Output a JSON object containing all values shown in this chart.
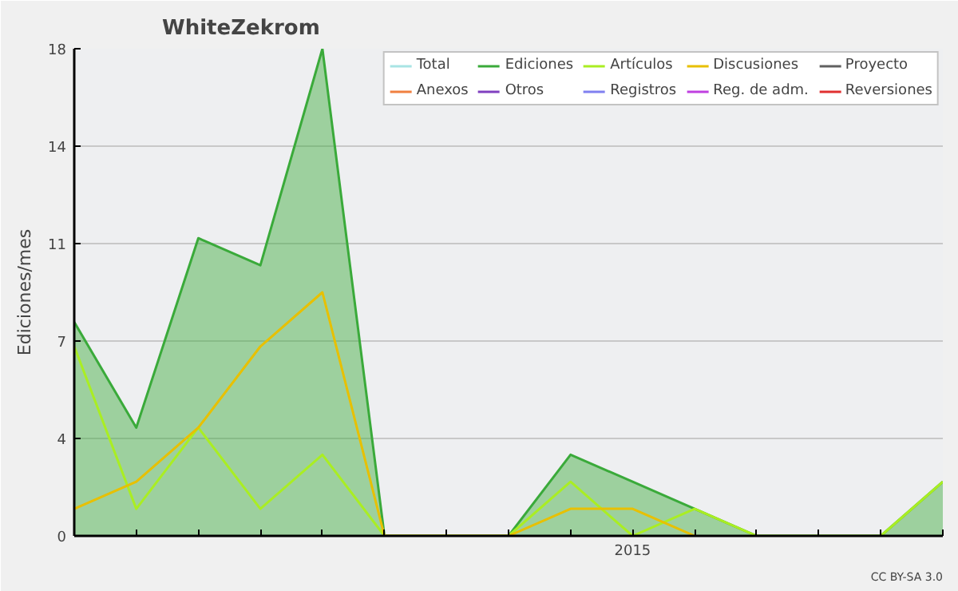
{
  "chart_data": {
    "type": "line",
    "title": "WhiteZekrom",
    "ylabel": "Ediciones/mes",
    "categories": [
      null,
      null,
      null,
      null,
      null,
      null,
      null,
      null,
      null,
      "2015",
      null,
      null,
      null,
      null,
      null
    ],
    "ylim": [
      0,
      18
    ],
    "yticks": [
      0,
      {
        "value": 3.6,
        "label": "4"
      },
      {
        "value": 7.2,
        "label": "7"
      },
      {
        "value": 10.8,
        "label": "11"
      },
      {
        "value": 14.4,
        "label": "14"
      },
      18
    ],
    "grid": "y",
    "legend": "top right",
    "series": [
      {
        "name": "Total",
        "color": "#a8e4e4",
        "values": [
          null,
          null,
          null,
          null,
          null,
          null,
          null,
          null,
          null,
          null,
          null,
          null,
          null,
          null,
          null
        ]
      },
      {
        "name": "Ediciones",
        "type": "area",
        "color": "#3aaa3a",
        "values": [
          7.9,
          4,
          11,
          10,
          18,
          0,
          0,
          0,
          3,
          2,
          1,
          0,
          0,
          0,
          2
        ]
      },
      {
        "name": "Artículos",
        "color": "#aaee22",
        "values": [
          7,
          1,
          4,
          1,
          3,
          0,
          0,
          0,
          2,
          0,
          1,
          0,
          0,
          0,
          2
        ]
      },
      {
        "name": "Discusiones",
        "color": "#e8c000",
        "values": [
          1,
          2,
          4,
          7,
          9,
          0,
          0,
          0,
          1,
          1,
          0,
          null,
          null,
          null,
          null
        ]
      },
      {
        "name": "Proyecto",
        "color": "#606060",
        "values": [
          null,
          null,
          null,
          null,
          null,
          null,
          null,
          null,
          null,
          null,
          null,
          null,
          null,
          null,
          null
        ]
      },
      {
        "name": "Anexos",
        "color": "#f08040",
        "values": [
          null,
          null,
          null,
          null,
          null,
          null,
          null,
          null,
          null,
          null,
          null,
          null,
          null,
          null,
          null
        ]
      },
      {
        "name": "Otros",
        "color": "#8040c0",
        "values": [
          null,
          null,
          null,
          null,
          null,
          null,
          null,
          null,
          null,
          null,
          null,
          null,
          null,
          null,
          null
        ]
      },
      {
        "name": "Registros",
        "color": "#8080f0",
        "values": [
          null,
          null,
          null,
          null,
          null,
          null,
          null,
          null,
          null,
          null,
          null,
          null,
          null,
          null,
          null
        ]
      },
      {
        "name": "Reg. de adm.",
        "color": "#c040e0",
        "values": [
          null,
          null,
          null,
          null,
          null,
          null,
          null,
          null,
          null,
          null,
          null,
          null,
          null,
          null,
          null
        ]
      },
      {
        "name": "Reversiones",
        "color": "#e03030",
        "values": [
          null,
          null,
          null,
          null,
          null,
          null,
          null,
          null,
          null,
          null,
          null,
          null,
          null,
          null,
          null
        ]
      }
    ],
    "annotations": [
      "CC BY-SA 3.0"
    ]
  }
}
